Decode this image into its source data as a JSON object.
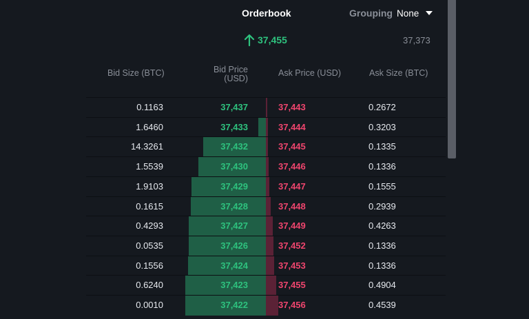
{
  "header": {
    "title": "Orderbook",
    "grouping_label": "Grouping",
    "grouping_value": "None"
  },
  "spread": {
    "current_price": "37,455",
    "direction": "up",
    "last_price": "37,373"
  },
  "columns": {
    "bid_size": "Bid Size (BTC)",
    "bid_price": [
      "Bid Price",
      "(USD)"
    ],
    "ask_price": "Ask Price (USD)",
    "ask_size": "Ask Size (BTC)"
  },
  "colors": {
    "background": "#15191f",
    "bid_text": "#2ec27e",
    "ask_text": "#f0456e",
    "bid_depth": "#1f5f46",
    "ask_depth": "#5b2236"
  },
  "rows": [
    {
      "bid_size": "0.1163",
      "bid_price": "37,437",
      "ask_price": "37,443",
      "ask_size": "0.2672",
      "bid_depth": 0.0,
      "ask_depth": 0.02
    },
    {
      "bid_size": "1.6460",
      "bid_price": "37,433",
      "ask_price": "37,444",
      "ask_size": "0.3203",
      "bid_depth": 0.11,
      "ask_depth": 0.03
    },
    {
      "bid_size": "14.3261",
      "bid_price": "37,432",
      "ask_price": "37,445",
      "ask_size": "0.1335",
      "bid_depth": 0.91,
      "ask_depth": 0.03
    },
    {
      "bid_size": "1.5539",
      "bid_price": "37,430",
      "ask_price": "37,446",
      "ask_size": "0.1336",
      "bid_depth": 0.98,
      "ask_depth": 0.04
    },
    {
      "bid_size": "1.9103",
      "bid_price": "37,429",
      "ask_price": "37,447",
      "ask_size": "0.1555",
      "bid_depth": 1.08,
      "ask_depth": 0.05
    },
    {
      "bid_size": "0.1615",
      "bid_price": "37,428",
      "ask_price": "37,448",
      "ask_size": "0.2939",
      "bid_depth": 1.09,
      "ask_depth": 0.07
    },
    {
      "bid_size": "0.4293",
      "bid_price": "37,427",
      "ask_price": "37,449",
      "ask_size": "0.4263",
      "bid_depth": 1.12,
      "ask_depth": 0.1
    },
    {
      "bid_size": "0.0535",
      "bid_price": "37,426",
      "ask_price": "37,452",
      "ask_size": "0.1336",
      "bid_depth": 1.12,
      "ask_depth": 0.11
    },
    {
      "bid_size": "0.1556",
      "bid_price": "37,424",
      "ask_price": "37,453",
      "ask_size": "0.1336",
      "bid_depth": 1.13,
      "ask_depth": 0.12
    },
    {
      "bid_size": "0.6240",
      "bid_price": "37,423",
      "ask_price": "37,455",
      "ask_size": "0.4904",
      "bid_depth": 1.17,
      "ask_depth": 0.15
    },
    {
      "bid_size": "0.0010",
      "bid_price": "37,422",
      "ask_price": "37,456",
      "ask_size": "0.4539",
      "bid_depth": 1.17,
      "ask_depth": 0.18
    }
  ]
}
